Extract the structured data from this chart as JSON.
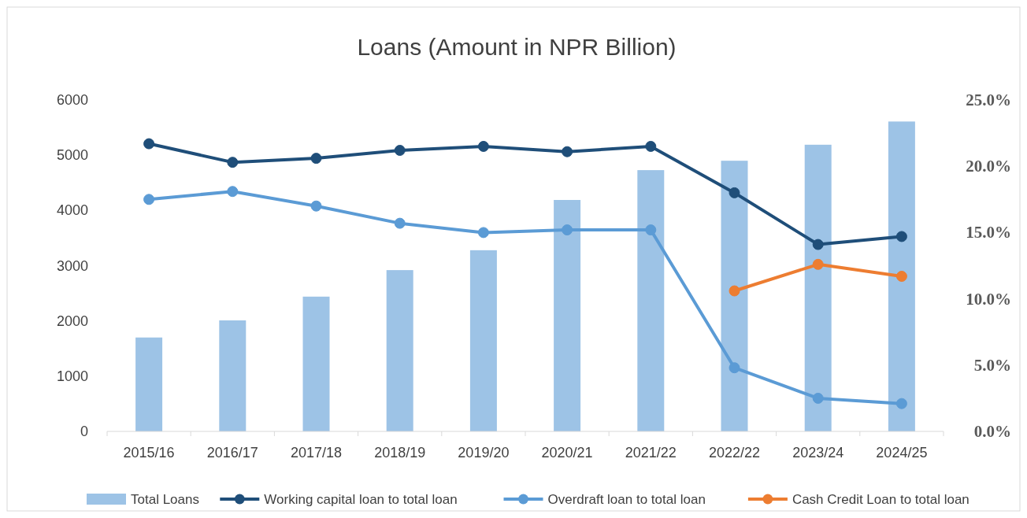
{
  "chart_data": {
    "type": "bar",
    "title": "Loans (Amount in NPR Billion)",
    "categories": [
      "2015/16",
      "2016/17",
      "2017/18",
      "2018/19",
      "2019/20",
      "2020/21",
      "2021/22",
      "2022/22",
      "2023/24",
      "2024/25"
    ],
    "series": [
      {
        "name": "Total Loans",
        "color": "#9dc3e6",
        "values": [
          1700,
          2010,
          2440,
          2920,
          3280,
          4190,
          4730,
          4900,
          5190,
          5610
        ]
      },
      {
        "name": "Working capital loan to total loan",
        "type": "line",
        "axis": "y2",
        "color": "#1f4e79",
        "values": [
          21.7,
          20.3,
          20.6,
          21.2,
          21.5,
          21.1,
          21.5,
          18.0,
          14.1,
          14.7
        ]
      },
      {
        "name": "Overdraft loan to total loan",
        "type": "line",
        "axis": "y2",
        "color": "#5b9bd5",
        "values": [
          17.5,
          18.1,
          17.0,
          15.7,
          15.0,
          15.2,
          15.2,
          4.8,
          2.5,
          2.1
        ]
      },
      {
        "name": "Cash Credit Loan to total loan",
        "type": "line",
        "axis": "y2",
        "color": "#ed7d31",
        "values": [
          null,
          null,
          null,
          null,
          null,
          null,
          null,
          10.6,
          12.6,
          11.7
        ]
      }
    ],
    "ylim": [
      0,
      6000
    ],
    "yticks": [
      0,
      1000,
      2000,
      3000,
      4000,
      5000,
      6000
    ],
    "y2lim": [
      0,
      25
    ],
    "y2ticks": [
      {
        "value": 0,
        "label": "0.0%"
      },
      {
        "value": 5,
        "label": "5.0%"
      },
      {
        "value": 10,
        "label": "10.0%"
      },
      {
        "value": 15,
        "label": "15.0%"
      },
      {
        "value": 20,
        "label": "20.0%"
      },
      {
        "value": 25,
        "label": "25.0%"
      }
    ],
    "marker": "circle",
    "legend": "bottom",
    "grid": false
  }
}
